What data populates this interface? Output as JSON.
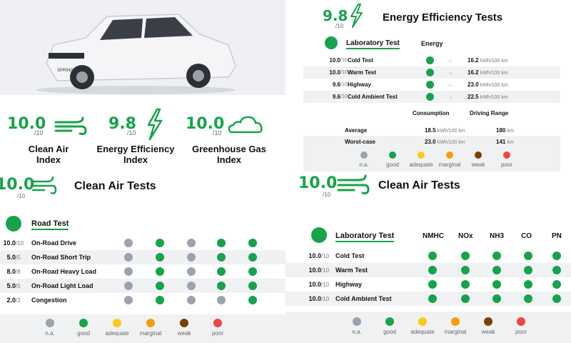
{
  "colors": {
    "na": "#9ca3af",
    "good": "#16a34a",
    "adequate": "#facc15",
    "marginal": "#f59e0b",
    "weak": "#7c3f00",
    "poor": "#ef4444"
  },
  "indices": [
    {
      "score": "10.0",
      "outof": "/10",
      "label1": "Clean Air",
      "label2": "Index",
      "icon": "wind-icon"
    },
    {
      "score": "9.8",
      "outof": "/10",
      "label1": "Energy Efficiency",
      "label2": "Index",
      "icon": "lightning-icon"
    },
    {
      "score": "10.0",
      "outof": "/10",
      "label1": "Greenhouse Gas",
      "label2": "Index",
      "icon": "cloud-icon"
    }
  ],
  "energy": {
    "score": "9.8",
    "outof": "/10",
    "title": "Energy Efficiency Tests",
    "lab_title": "Laboratory Test",
    "col_header": "Energy",
    "rows": [
      {
        "score": "10.0",
        "outof": "/10",
        "name": "Cold Test",
        "value": "16.2",
        "unit": "kWh/100 km"
      },
      {
        "score": "10.0",
        "outof": "/10",
        "name": "Warm Test",
        "value": "16.2",
        "unit": "kWh/100 km"
      },
      {
        "score": "9.6",
        "outof": "/10",
        "name": "Highway",
        "value": "23.0",
        "unit": "kWh/100 km"
      },
      {
        "score": "9.6",
        "outof": "/10",
        "name": "Cold Ambient Test",
        "value": "22.5",
        "unit": "kWh/100 km"
      }
    ],
    "summary_headers": {
      "consumption": "Consumption",
      "range": "Driving Range"
    },
    "summary": [
      {
        "label": "Average",
        "consumption": "18.5",
        "consumption_unit": "kWh/100 km",
        "range": "180",
        "range_unit": "km"
      },
      {
        "label": "Worst-case",
        "consumption": "23.0",
        "consumption_unit": "kWh/100 km",
        "range": "141",
        "range_unit": "km"
      }
    ]
  },
  "legend": [
    "n.a.",
    "good",
    "adequate",
    "marginal",
    "weak",
    "poor"
  ],
  "road": {
    "score": "10.0",
    "outof": "/10",
    "title": "Clean Air Tests",
    "section": "Road Test",
    "rows": [
      {
        "score": "10.0",
        "outof": "/10",
        "name": "On-Road Drive",
        "dots": [
          "na",
          "good",
          "na",
          "good",
          "good"
        ]
      },
      {
        "score": "5.0",
        "outof": "/5",
        "name": "On-Road Short Trip",
        "dots": [
          "na",
          "good",
          "na",
          "good",
          "good"
        ]
      },
      {
        "score": "8.0",
        "outof": "/8",
        "name": "On-Road Heavy Load",
        "dots": [
          "na",
          "good",
          "na",
          "good",
          "good"
        ]
      },
      {
        "score": "5.0",
        "outof": "/5",
        "name": "On-Road Light Load",
        "dots": [
          "na",
          "good",
          "na",
          "good",
          "good"
        ]
      },
      {
        "score": "2.0",
        "outof": "/2",
        "name": "Congestion",
        "dots": [
          "na",
          "good",
          "na",
          "na",
          "good"
        ]
      }
    ]
  },
  "lab": {
    "score": "10.0",
    "outof": "/10",
    "title": "Clean Air Tests",
    "section": "Laboratory Test",
    "columns": [
      "NMHC",
      "NOx",
      "NH3",
      "CO",
      "PN"
    ],
    "rows": [
      {
        "score": "10.0",
        "outof": "/10",
        "name": "Cold Test"
      },
      {
        "score": "10.0",
        "outof": "/10",
        "name": "Warm Test"
      },
      {
        "score": "10.0",
        "outof": "/10",
        "name": "Highway"
      },
      {
        "score": "10.0",
        "outof": "/10",
        "name": "Cold Ambient Test"
      }
    ]
  },
  "car_badge": "SPRING"
}
